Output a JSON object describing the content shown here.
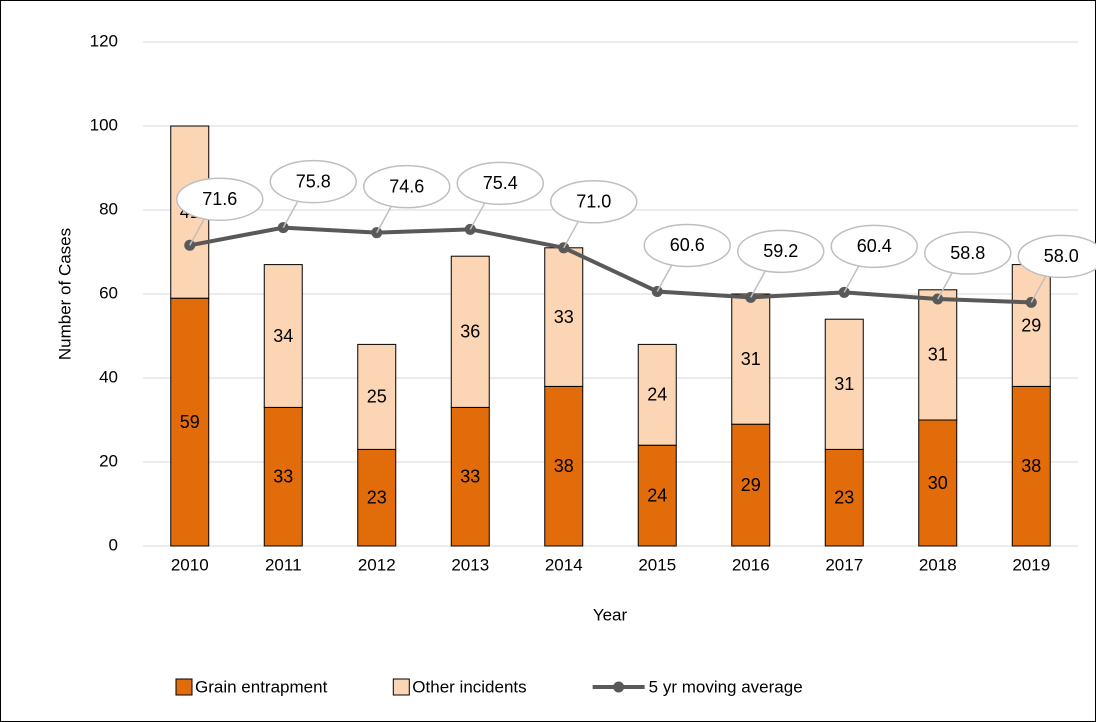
{
  "chart_data": {
    "type": "bar",
    "x_label": "Year",
    "y_label": "Number of Cases",
    "categories": [
      "2010",
      "2011",
      "2012",
      "2013",
      "2014",
      "2015",
      "2016",
      "2017",
      "2018",
      "2019"
    ],
    "series": [
      {
        "name": "Grain entrapment",
        "color": "#e26b0a",
        "values": [
          59,
          33,
          23,
          33,
          38,
          24,
          29,
          23,
          30,
          38
        ]
      },
      {
        "name": "Other incidents",
        "color": "#fcd5b5",
        "values": [
          41,
          34,
          25,
          36,
          33,
          24,
          31,
          31,
          31,
          29
        ]
      },
      {
        "name": "5 yr moving average",
        "type": "line",
        "color": "#595959",
        "values": [
          71.6,
          75.8,
          74.6,
          75.4,
          71.0,
          60.6,
          59.2,
          60.4,
          58.8,
          58.0
        ],
        "value_labels": [
          "71.6",
          "75.8",
          "74.6",
          "75.4",
          "71.0",
          "60.6",
          "59.2",
          "60.4",
          "58.8",
          "58.0"
        ]
      }
    ],
    "ylim": [
      0,
      120
    ],
    "yticks": [
      0,
      20,
      40,
      60,
      80,
      100,
      120
    ],
    "grid": true,
    "legend": "bottom"
  }
}
